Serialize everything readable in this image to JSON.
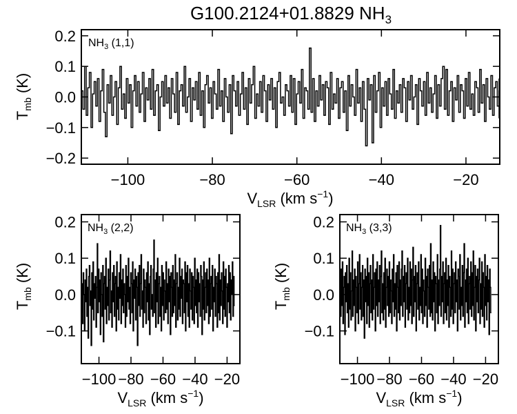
{
  "figure": {
    "title_main": "G100.2124+01.8829 NH",
    "title_sub": "3"
  },
  "chart_data": [
    {
      "type": "line",
      "panel": "NH3 (1,1)",
      "annotation": {
        "main": "NH",
        "sub": "3",
        "rest": " (1,1)"
      },
      "xlabel": {
        "main": "V",
        "sub": "LSR",
        "rest": " (km s",
        "sup": "−1",
        "close": ")"
      },
      "ylabel": {
        "main": "T",
        "sub": "mb",
        "rest": " (K)"
      },
      "xlim": [
        -111,
        -12
      ],
      "ylim": [
        -0.22,
        0.22
      ],
      "xticks": [
        -100,
        -80,
        -60,
        -40,
        -20
      ],
      "xticklabels": [
        "−100",
        "−80",
        "−60",
        "−40",
        "−20"
      ],
      "yticks": [
        -0.2,
        -0.1,
        0.0,
        0.1,
        0.2
      ],
      "yticklabels": [
        "−0.2",
        "−0.1",
        "0.0",
        "0.1",
        "0.2"
      ],
      "step_kms": 0.38,
      "series": [
        {
          "values": [
            0.02,
            -0.04,
            0.1,
            -0.06,
            0.03,
            0.08,
            -0.1,
            0.01,
            0.05,
            -0.03,
            0.06,
            -0.08,
            0.02,
            0.09,
            -0.05,
            -0.13,
            0.04,
            -0.02,
            0.07,
            -0.06,
            0.0,
            0.05,
            -0.09,
            0.03,
            0.1,
            -0.04,
            0.01,
            -0.07,
            0.06,
            -0.02,
            0.04,
            -0.1,
            0.02,
            0.07,
            -0.03,
            0.05,
            -0.05,
            0.01,
            0.08,
            -0.08,
            0.03,
            -0.01,
            0.06,
            -0.04,
            0.09,
            -0.06,
            0.02,
            0.04,
            -0.11,
            0.0,
            0.05,
            -0.03,
            0.07,
            -0.02,
            0.03,
            -0.07,
            0.06,
            0.01,
            -0.05,
            0.08,
            -0.09,
            0.02,
            0.04,
            -0.03,
            0.1,
            -0.05,
            0.0,
            0.06,
            -0.08,
            0.03,
            -0.01,
            0.05,
            -0.04,
            0.08,
            -0.06,
            0.02,
            -0.1,
            0.04,
            0.07,
            -0.02,
            0.03,
            -0.07,
            0.05,
            0.01,
            -0.04,
            0.09,
            -0.03,
            0.02,
            -0.08,
            0.06,
            0.0,
            -0.05,
            0.04,
            -0.12,
            0.07,
            0.02,
            -0.03,
            0.05,
            -0.06,
            0.01,
            0.08,
            -0.04,
            0.03,
            -0.09,
            0.06,
            -0.02,
            0.04,
            0.1,
            -0.07,
            0.01,
            -0.03,
            0.05,
            -0.05,
            0.07,
            0.02,
            -0.08,
            0.04,
            -0.01,
            0.06,
            -0.04,
            0.03,
            -0.1,
            0.05,
            0.08,
            -0.02,
            0.0,
            -0.06,
            0.04,
            0.02,
            -0.03,
            0.07,
            -0.05,
            0.06,
            -0.09,
            0.01,
            0.05,
            -0.02,
            0.09,
            -0.07,
            0.03,
            0.02,
            -0.04,
            0.16,
            -0.05,
            0.06,
            -0.08,
            0.02,
            -0.03,
            0.07,
            -0.01,
            0.04,
            -0.06,
            0.05,
            0.03,
            -0.09,
            0.08,
            -0.04,
            0.01,
            -0.02,
            0.06,
            -0.07,
            0.03,
            0.05,
            -0.05,
            0.02,
            -0.11,
            0.07,
            -0.03,
            0.04,
            0.0,
            -0.06,
            0.09,
            -0.02,
            0.03,
            -0.08,
            0.05,
            -0.04,
            -0.16,
            0.06,
            -0.01,
            0.04,
            -0.15,
            0.07,
            -0.05,
            0.02,
            0.08,
            -0.1,
            0.03,
            -0.03,
            0.05,
            -0.06,
            0.06,
            0.01,
            -0.04,
            0.09,
            -0.07,
            0.02,
            -0.02,
            0.04,
            -0.05,
            0.06,
            0.03,
            -0.08,
            0.05,
            -0.01,
            0.07,
            -0.04,
            0.0,
            0.04,
            -0.09,
            0.06,
            0.02,
            -0.03,
            0.05,
            -0.06,
            0.08,
            -0.02,
            0.03,
            -0.05,
            0.01,
            0.07,
            -0.07,
            0.04,
            -0.03,
            0.06,
            0.1,
            -0.04,
            0.09,
            -0.06,
            0.02,
            0.05,
            -0.08,
            0.03,
            -0.01,
            0.07,
            -0.05,
            0.04,
            0.02,
            -0.07,
            0.06,
            -0.03,
            0.08,
            -0.04,
            0.01,
            -0.06,
            0.05,
            0.03,
            -0.05,
            0.09,
            -0.02,
            0.04,
            -0.08,
            0.06,
            0.0,
            -0.04,
            0.07,
            -0.06,
            0.03,
            0.05,
            -0.03,
            0.02,
            -0.07,
            0.06
          ]
        }
      ]
    },
    {
      "type": "line",
      "panel": "NH3 (2,2)",
      "annotation": {
        "main": "NH",
        "sub": "3",
        "rest": " (2,2)"
      },
      "xlabel": {
        "main": "V",
        "sub": "LSR",
        "rest": " (km s",
        "sup": "−1",
        "close": ")"
      },
      "ylabel": {
        "main": "T",
        "sub": "mb",
        "rest": " (K)"
      },
      "xlim": [
        -111,
        -12
      ],
      "ylim": [
        -0.19,
        0.22
      ],
      "xticks": [
        -100,
        -80,
        -60,
        -40,
        -20
      ],
      "xticklabels": [
        "−100",
        "−80",
        "−60",
        "−40",
        "−20"
      ],
      "yticks": [
        -0.1,
        0.0,
        0.1,
        0.2
      ],
      "yticklabels": [
        "−0.1",
        "0.0",
        "0.1",
        "0.2"
      ],
      "step_kms": 0.38,
      "series": [
        {
          "values": [
            -0.05,
            0.03,
            -0.08,
            0.06,
            0.0,
            -0.1,
            0.04,
            -0.02,
            0.07,
            -0.06,
            0.02,
            -0.12,
            0.05,
            0.08,
            -0.03,
            0.01,
            -0.14,
            0.06,
            -0.04,
            0.09,
            -0.07,
            0.03,
            -0.01,
            0.05,
            -0.09,
            0.02,
            0.14,
            -0.05,
            0.07,
            -0.02,
            0.04,
            -0.11,
            0.06,
            0.0,
            -0.06,
            0.08,
            -0.13,
            0.03,
            0.05,
            -0.04,
            0.1,
            -0.08,
            0.02,
            -0.03,
            0.07,
            -0.07,
            0.04,
            0.12,
            -0.05,
            0.01,
            -0.09,
            0.06,
            -0.02,
            0.08,
            -0.06,
            0.03,
            0.05,
            -0.1,
            0.09,
            -0.04,
            0.02,
            -0.07,
            0.06,
            -0.01,
            0.11,
            -0.08,
            0.04,
            -0.03,
            0.07,
            -0.05,
            0.03,
            0.0,
            -0.09,
            0.08,
            -0.06,
            0.05,
            -0.02,
            0.1,
            -0.04,
            0.02,
            -0.08,
            0.06,
            0.03,
            -0.05,
            0.09,
            -0.1,
            0.04,
            -0.01,
            0.07,
            -0.07,
            0.05,
            0.02,
            -0.14,
            0.06,
            -0.03,
            0.08,
            -0.06,
            0.03,
            0.11,
            -0.04,
            0.01,
            -0.09,
            0.07,
            -0.05,
            0.04,
            0.02,
            -0.08,
            0.06,
            -0.02,
            0.09,
            -0.07,
            0.03,
            -0.11,
            0.05,
            0.08,
            -0.04,
            0.0,
            -0.06,
            0.07,
            0.15,
            -0.05,
            0.04,
            -0.09,
            0.06,
            -0.02,
            0.1,
            -0.08,
            0.03,
            0.05,
            -0.06,
            0.02,
            -0.1,
            0.08,
            -0.03,
            0.06,
            -0.07,
            0.04,
            0.01,
            -0.05,
            0.09,
            -0.04,
            0.03,
            -0.08,
            0.07,
            -0.02,
            0.05,
            -0.11,
            0.06,
            0.02,
            -0.06,
            0.08,
            -0.05,
            0.04,
            -0.03,
            0.11,
            -0.09,
            0.03,
            0.06,
            -0.07,
            0.02,
            -0.04,
            0.1,
            -0.06,
            0.05,
            -0.01,
            0.07,
            -0.08,
            0.04,
            0.03,
            -0.05,
            0.09,
            -0.1,
            0.06,
            -0.02,
            0.08,
            -0.06,
            0.03,
            -0.09,
            0.07,
            0.01,
            -0.04,
            0.06,
            -0.07,
            0.05,
            0.02,
            -0.08,
            0.1,
            -0.03,
            0.04,
            -0.05,
            0.07,
            -0.09,
            0.06,
            -0.02,
            0.03,
            -0.06,
            0.08,
            0.05,
            -0.11,
            0.04,
            -0.04,
            0.09,
            -0.07,
            0.02,
            0.06,
            -0.05,
            0.07,
            -0.03,
            0.04,
            -0.08,
            0.1,
            -0.06,
            0.03,
            0.05,
            -0.04,
            0.08,
            -0.1,
            0.02,
            -0.02,
            0.07,
            -0.06,
            0.05,
            0.03,
            -0.09,
            0.06,
            -0.05,
            0.11,
            -0.07,
            0.04,
            -0.03,
            0.06,
            0.01,
            -0.08,
            0.09,
            -0.04,
            0.05,
            -0.06,
            0.07,
            0.02,
            -0.09,
            0.03,
            -0.02,
            0.08,
            -0.05,
            0.06,
            -0.07,
            0.04,
            0.0,
            0.09,
            -0.06,
            0.05,
            -0.03
          ]
        }
      ]
    },
    {
      "type": "line",
      "panel": "NH3 (3,3)",
      "annotation": {
        "main": "NH",
        "sub": "3",
        "rest": " (3,3)"
      },
      "xlabel": {
        "main": "V",
        "sub": "LSR",
        "rest": " (km s",
        "sup": "−1",
        "close": ")"
      },
      "ylabel": {
        "main": "T",
        "sub": "mb",
        "rest": " (K)"
      },
      "xlim": [
        -111,
        -12
      ],
      "ylim": [
        -0.19,
        0.22
      ],
      "xticks": [
        -100,
        -80,
        -60,
        -40,
        -20
      ],
      "xticklabels": [
        "−100",
        "−80",
        "−60",
        "−40",
        "−20"
      ],
      "yticks": [
        -0.1,
        0.0,
        0.1,
        0.2
      ],
      "yticklabels": [
        "−0.1",
        "0.0",
        "0.1",
        "0.2"
      ],
      "step_kms": 0.38,
      "series": [
        {
          "values": [
            0.04,
            -0.06,
            0.07,
            -0.03,
            0.09,
            -0.08,
            0.02,
            0.05,
            -0.11,
            0.06,
            -0.02,
            0.08,
            -0.05,
            0.03,
            -0.09,
            0.1,
            -0.04,
            0.06,
            -0.07,
            0.01,
            0.12,
            -0.06,
            0.04,
            -0.03,
            0.07,
            -0.1,
            0.05,
            0.02,
            -0.05,
            0.09,
            -0.08,
            0.03,
            0.11,
            -0.04,
            0.06,
            -0.07,
            0.02,
            0.08,
            -0.06,
            0.04,
            -0.12,
            0.07,
            -0.02,
            0.05,
            -0.08,
            0.1,
            -0.03,
            0.06,
            -0.09,
            0.03,
            0.08,
            -0.05,
            0.04,
            -0.07,
            0.11,
            -0.04,
            0.02,
            0.06,
            -0.1,
            0.07,
            -0.03,
            0.09,
            -0.06,
            0.04,
            -0.02,
            0.08,
            -0.08,
            0.05,
            0.12,
            -0.05,
            0.03,
            -0.07,
            0.06,
            -0.04,
            0.1,
            -0.09,
            0.02,
            0.07,
            -0.03,
            0.05,
            -0.06,
            0.09,
            -0.05,
            0.04,
            0.01,
            -0.08,
            0.07,
            -0.02,
            0.11,
            -0.06,
            0.03,
            -0.04,
            0.06,
            -0.1,
            0.08,
            0.02,
            -0.05,
            0.09,
            -0.07,
            0.04,
            -0.03,
            0.07,
            0.12,
            -0.06,
            0.05,
            -0.02,
            0.08,
            -0.09,
            0.03,
            0.06,
            -0.04,
            0.1,
            -0.07,
            0.02,
            -0.05,
            0.09,
            -0.03,
            0.07,
            -0.08,
            0.04,
            0.13,
            -0.06,
            0.05,
            -0.02,
            0.08,
            -0.1,
            0.03,
            0.06,
            -0.04,
            0.09,
            -0.07,
            0.02,
            -0.03,
            0.11,
            -0.05,
            0.07,
            -0.08,
            0.04,
            0.01,
            -0.06,
            0.1,
            -0.03,
            0.05,
            -0.09,
            0.07,
            0.02,
            -0.04,
            0.08,
            -0.06,
            0.14,
            -0.05,
            0.04,
            -0.07,
            0.09,
            -0.02,
            0.06,
            -0.1,
            0.05,
            0.03,
            -0.05,
            0.11,
            -0.08,
            0.04,
            -0.03,
            0.07,
            0.19,
            -0.06,
            0.05,
            -0.02,
            0.09,
            -0.08,
            0.03,
            0.06,
            -0.05,
            0.1,
            -0.07,
            0.04,
            -0.03,
            0.08,
            -0.09,
            0.05,
            0.02,
            -0.06,
            0.12,
            -0.04,
            0.07,
            -0.08,
            0.03,
            0.06,
            -0.05,
            0.09,
            -0.02,
            0.04,
            -0.1,
            0.07,
            0.05,
            -0.04,
            0.11,
            -0.07,
            0.02,
            -0.03,
            0.08,
            -0.06,
            0.06,
            0.14,
            -0.09,
            0.04,
            -0.02,
            0.07,
            -0.05,
            0.1,
            -0.08,
            0.03,
            0.05,
            -0.04,
            0.09,
            -0.06,
            0.06,
            -0.03,
            0.12,
            -0.07,
            0.02,
            0.08,
            -0.1,
            0.05,
            -0.02,
            0.07,
            -0.05,
            0.04,
            0.1,
            -0.08,
            0.03,
            -0.04,
            0.09,
            -0.06,
            0.06,
            0.02,
            -0.09,
            0.11,
            -0.03,
            0.05,
            -0.07,
            0.08,
            -0.02,
            0.04,
            -0.11,
            0.07,
            0.02,
            -0.05
          ]
        }
      ]
    }
  ]
}
